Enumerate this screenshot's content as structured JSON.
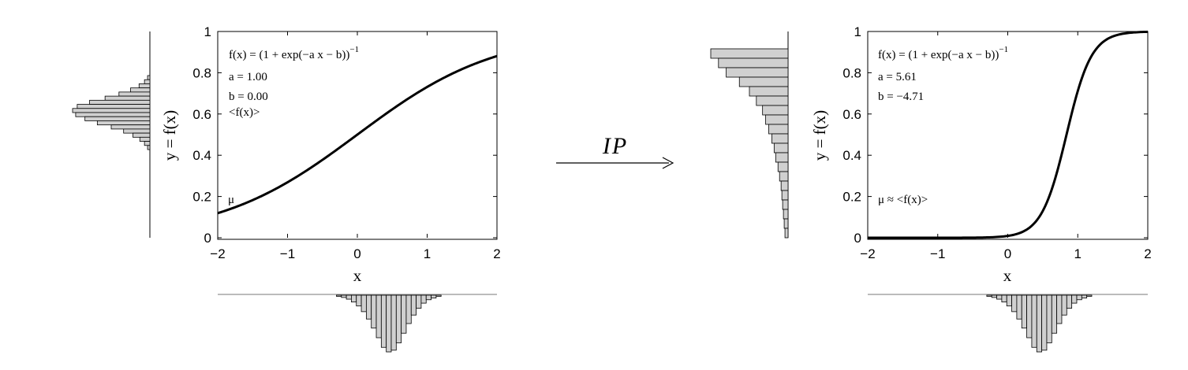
{
  "chart_data": [
    {
      "type": "line",
      "title": "",
      "xlabel": "x",
      "ylabel": "y = f(x)",
      "xlim": [
        -2,
        2
      ],
      "ylim": [
        0,
        1
      ],
      "x_ticks": [
        "−2",
        "−1",
        "0",
        "1",
        "2"
      ],
      "y_ticks": [
        "0",
        "0.2",
        "0.4",
        "0.6",
        "0.8",
        "1"
      ],
      "params": {
        "a": 1.0,
        "b": 0.0
      },
      "series": [
        {
          "x": [
            -2,
            -1.5,
            -1,
            -0.5,
            0,
            0.5,
            1,
            1.5,
            2
          ],
          "y": [
            0.119,
            0.182,
            0.269,
            0.378,
            0.5,
            0.622,
            0.731,
            0.818,
            0.881
          ]
        }
      ],
      "annotations": {
        "formula": "f(x) = (1 + exp(−a x − b))",
        "exponent": "−1",
        "a": "a = 1.00",
        "b": "b = 0.00",
        "mean_output": "<f(x)>",
        "mu": "μ"
      },
      "x_histogram": {
        "values": [
          0.02,
          0.04,
          0.07,
          0.12,
          0.19,
          0.29,
          0.42,
          0.58,
          0.75,
          0.92,
          1.0,
          0.97,
          0.84,
          0.67,
          0.5,
          0.35,
          0.23,
          0.14,
          0.08,
          0.05,
          0.02
        ]
      },
      "y_histogram": {
        "values": [
          0.03,
          0.07,
          0.14,
          0.25,
          0.4,
          0.58,
          0.78,
          0.94,
          1.0,
          0.96,
          0.84,
          0.68,
          0.5,
          0.34,
          0.22,
          0.13,
          0.07,
          0.03
        ]
      }
    },
    {
      "type": "line",
      "title": "",
      "xlabel": "x",
      "ylabel": "y = f(x)",
      "xlim": [
        -2,
        2
      ],
      "ylim": [
        0,
        1
      ],
      "x_ticks": [
        "−2",
        "−1",
        "0",
        "1",
        "2"
      ],
      "y_ticks": [
        "0",
        "0.2",
        "0.4",
        "0.6",
        "0.8",
        "1"
      ],
      "params": {
        "a": 5.61,
        "b": -4.71
      },
      "series": [
        {
          "x": [
            -2,
            -1,
            0,
            0.3,
            0.5,
            0.7,
            0.84,
            1.0,
            1.2,
            1.5,
            2
          ],
          "y": [
            0.0001,
            0.0005,
            0.009,
            0.048,
            0.13,
            0.32,
            0.5,
            0.71,
            0.9,
            0.98,
            0.998
          ]
        }
      ],
      "annotations": {
        "formula": "f(x) = (1 + exp(−a x − b))",
        "exponent": "−1",
        "a": "a = 5.61",
        "b": "b = −4.71",
        "mu_approx": "μ ≈ <f(x)>"
      },
      "x_histogram": {
        "values": [
          0.02,
          0.04,
          0.07,
          0.12,
          0.19,
          0.29,
          0.42,
          0.58,
          0.75,
          0.92,
          1.0,
          0.97,
          0.84,
          0.67,
          0.5,
          0.35,
          0.23,
          0.14,
          0.08,
          0.05,
          0.02
        ]
      },
      "y_histogram": {
        "values": [
          1.0,
          0.9,
          0.8,
          0.63,
          0.5,
          0.41,
          0.33,
          0.29,
          0.25,
          0.21,
          0.18,
          0.16,
          0.13,
          0.11,
          0.09,
          0.08,
          0.07,
          0.06,
          0.05,
          0.04
        ]
      }
    }
  ],
  "transform": {
    "label": "IP"
  }
}
